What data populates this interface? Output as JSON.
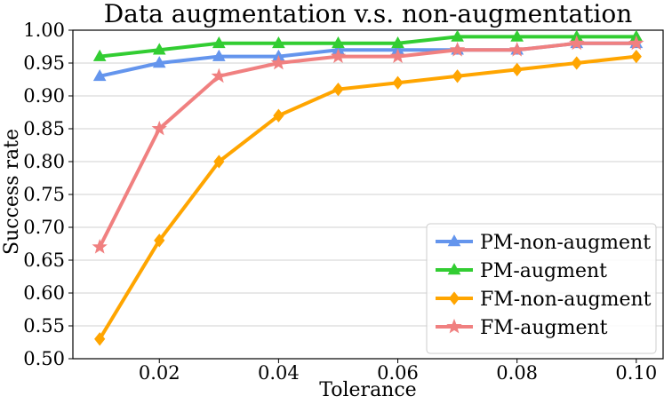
{
  "chart_data": {
    "type": "line",
    "title": "Data augmentation v.s. non-augmentation",
    "xlabel": "Tolerance",
    "ylabel": "Success rate",
    "x": [
      0.01,
      0.02,
      0.03,
      0.04,
      0.05,
      0.06,
      0.07,
      0.08,
      0.09,
      0.1
    ],
    "xlim": [
      0.0055,
      0.1045
    ],
    "ylim": [
      0.5,
      1.0
    ],
    "xticks": [
      "0.02",
      "0.04",
      "0.06",
      "0.08",
      "0.10"
    ],
    "xtick_values": [
      0.02,
      0.04,
      0.06,
      0.08,
      0.1
    ],
    "yticks": [
      "0.50",
      "0.55",
      "0.60",
      "0.65",
      "0.70",
      "0.75",
      "0.80",
      "0.85",
      "0.90",
      "0.95",
      "1.00"
    ],
    "ytick_values": [
      0.5,
      0.55,
      0.6,
      0.65,
      0.7,
      0.75,
      0.8,
      0.85,
      0.9,
      0.95,
      1.0
    ],
    "grid": "horizontal",
    "legend_position": "bottom-right",
    "series": [
      {
        "name": "PM-non-augment",
        "color": "#6495ED",
        "marker": "triangle",
        "values": [
          0.93,
          0.95,
          0.96,
          0.96,
          0.97,
          0.97,
          0.97,
          0.97,
          0.98,
          0.98
        ]
      },
      {
        "name": "PM-augment",
        "color": "#32CD32",
        "marker": "triangle",
        "values": [
          0.96,
          0.97,
          0.98,
          0.98,
          0.98,
          0.98,
          0.99,
          0.99,
          0.99,
          0.99
        ]
      },
      {
        "name": "FM-non-augment",
        "color": "#FFA500",
        "marker": "diamond",
        "values": [
          0.53,
          0.68,
          0.8,
          0.87,
          0.91,
          0.92,
          0.93,
          0.94,
          0.95,
          0.96
        ]
      },
      {
        "name": "FM-augment",
        "color": "#F08080",
        "marker": "star",
        "values": [
          0.67,
          0.85,
          0.93,
          0.95,
          0.96,
          0.96,
          0.97,
          0.97,
          0.98,
          0.98
        ]
      }
    ]
  }
}
